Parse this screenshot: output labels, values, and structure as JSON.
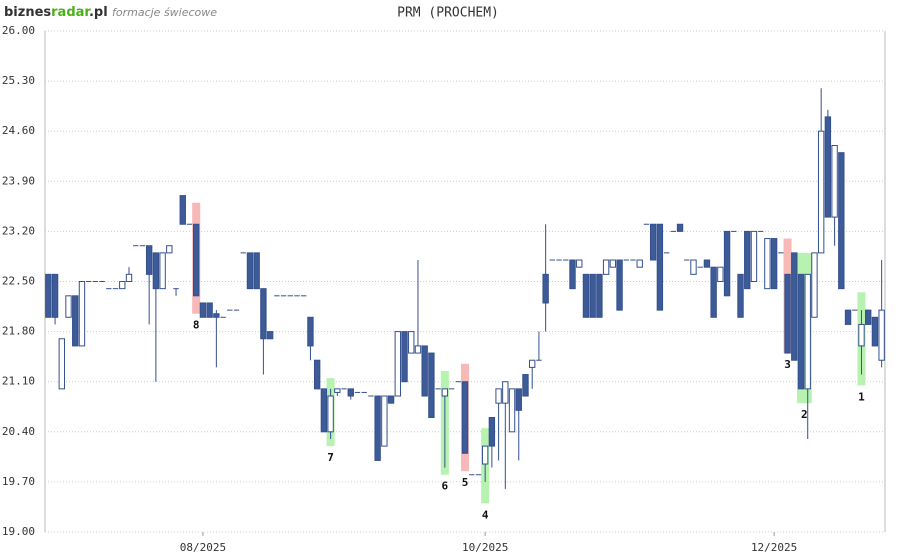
{
  "logo": [
    "biznes",
    "radar",
    ".pl"
  ],
  "subtitle": "formacje świecowe",
  "chart_data": {
    "type": "candlestick",
    "title": "PRM (PROCHEM)",
    "up_color": "#ffffff",
    "down_color": "#3d5b97",
    "edge_color": "#34508f",
    "grid": true,
    "ylim": [
      19,
      26
    ],
    "yticks": [
      {
        "value": 19,
        "label": "19.00"
      },
      {
        "value": 19.7,
        "label": "19.70"
      },
      {
        "value": 20.4,
        "label": "20.40"
      },
      {
        "value": 21.1,
        "label": "21.10"
      },
      {
        "value": 21.8,
        "label": "21.80"
      },
      {
        "value": 22.5,
        "label": "22.50"
      },
      {
        "value": 23.2,
        "label": "23.20"
      },
      {
        "value": 23.9,
        "label": "23.90"
      },
      {
        "value": 24.6,
        "label": "24.60"
      },
      {
        "value": 25.3,
        "label": "25.30"
      },
      {
        "value": 26,
        "label": "26.00"
      }
    ],
    "categories": [
      null,
      null,
      null,
      null,
      null,
      null,
      null,
      null,
      null,
      null,
      null,
      null,
      null,
      null,
      null,
      null,
      null,
      null,
      null,
      null,
      null,
      null,
      null,
      "08/2025",
      null,
      null,
      null,
      null,
      null,
      null,
      null,
      null,
      null,
      null,
      null,
      null,
      null,
      null,
      null,
      null,
      null,
      null,
      null,
      null,
      null,
      null,
      null,
      null,
      null,
      null,
      null,
      null,
      null,
      null,
      null,
      null,
      null,
      null,
      null,
      null,
      null,
      null,
      null,
      null,
      null,
      "10/2025",
      null,
      null,
      null,
      null,
      null,
      null,
      null,
      null,
      null,
      null,
      null,
      null,
      null,
      null,
      null,
      null,
      null,
      null,
      null,
      null,
      null,
      null,
      null,
      null,
      null,
      null,
      null,
      null,
      null,
      null,
      null,
      null,
      null,
      null,
      null,
      null,
      null,
      null,
      null,
      null,
      null,
      null,
      "12/2025",
      null,
      null,
      null,
      null,
      null,
      null,
      null,
      null,
      null,
      null,
      null,
      null,
      null,
      null,
      null,
      null
    ],
    "ohlc": [
      [
        22.6,
        22.6,
        22.0,
        22.0
      ],
      [
        22.6,
        22.6,
        21.9,
        22.0
      ],
      [
        21.0,
        21.7,
        21.0,
        21.7
      ],
      [
        22.0,
        22.3,
        22.0,
        22.3
      ],
      [
        22.3,
        22.3,
        21.6,
        21.6
      ],
      [
        21.6,
        22.5,
        21.6,
        22.5
      ],
      [
        22.5,
        22.5,
        22.5,
        22.5
      ],
      [
        22.5,
        22.5,
        22.5,
        22.5
      ],
      [
        22.5,
        22.5,
        22.5,
        22.5
      ],
      [
        22.4,
        22.4,
        22.4,
        22.4
      ],
      [
        22.4,
        22.4,
        22.4,
        22.4
      ],
      [
        22.4,
        22.5,
        22.4,
        22.5
      ],
      [
        22.5,
        22.7,
        22.5,
        22.6
      ],
      [
        23.0,
        23.0,
        23.0,
        23.0
      ],
      [
        23.0,
        23.0,
        23.0,
        23.0
      ],
      [
        23.0,
        23.0,
        21.9,
        22.6
      ],
      [
        22.9,
        22.9,
        21.1,
        22.4
      ],
      [
        22.4,
        22.9,
        22.4,
        22.9
      ],
      [
        22.9,
        23.0,
        22.9,
        23.0
      ],
      [
        22.4,
        22.4,
        22.3,
        22.4
      ],
      [
        23.7,
        23.7,
        23.3,
        23.3
      ],
      [
        23.3,
        23.3,
        23.3,
        23.3
      ],
      [
        23.3,
        23.3,
        22.3,
        22.3
      ],
      [
        22.2,
        22.2,
        22.0,
        22.0
      ],
      [
        22.2,
        22.2,
        22.0,
        22.0
      ],
      [
        22.05,
        22.1,
        21.3,
        22.0
      ],
      [
        22.0,
        22.0,
        22.0,
        22.0
      ],
      [
        22.1,
        22.1,
        22.1,
        22.1
      ],
      [
        22.1,
        22.1,
        22.1,
        22.1
      ],
      [
        22.9,
        22.9,
        22.9,
        22.9
      ],
      [
        22.9,
        22.9,
        22.4,
        22.4
      ],
      [
        22.9,
        22.9,
        22.4,
        22.4
      ],
      [
        22.4,
        22.4,
        21.2,
        21.7
      ],
      [
        21.8,
        21.8,
        21.7,
        21.7
      ],
      [
        22.3,
        22.3,
        22.3,
        22.3
      ],
      [
        22.3,
        22.3,
        22.3,
        22.3
      ],
      [
        22.3,
        22.3,
        22.3,
        22.3
      ],
      [
        22.3,
        22.3,
        22.3,
        22.3
      ],
      [
        22.3,
        22.3,
        22.3,
        22.3
      ],
      [
        22.0,
        22.0,
        21.4,
        21.6
      ],
      [
        21.4,
        21.4,
        21.0,
        21.0
      ],
      [
        21.0,
        21.0,
        20.4,
        20.4
      ],
      [
        20.4,
        21.0,
        20.3,
        20.9
      ],
      [
        20.95,
        21.0,
        20.9,
        21.0
      ],
      [
        21.0,
        21.0,
        21.0,
        21.0
      ],
      [
        21.0,
        21.0,
        20.85,
        20.9
      ],
      [
        20.95,
        20.95,
        20.95,
        20.95
      ],
      [
        20.95,
        20.95,
        20.95,
        20.95
      ],
      [
        20.9,
        20.9,
        20.9,
        20.9
      ],
      [
        20.9,
        20.9,
        20.0,
        20.0
      ],
      [
        20.2,
        20.9,
        20.2,
        20.9
      ],
      [
        20.9,
        20.9,
        20.8,
        20.8
      ],
      [
        20.9,
        21.8,
        20.9,
        21.8
      ],
      [
        21.8,
        21.8,
        21.1,
        21.1
      ],
      [
        21.5,
        21.8,
        21.5,
        21.8
      ],
      [
        21.5,
        22.8,
        21.5,
        21.6
      ],
      [
        21.6,
        21.6,
        20.9,
        20.9
      ],
      [
        21.5,
        21.5,
        20.6,
        20.6
      ],
      [
        21.0,
        21.0,
        21.0,
        21.0
      ],
      [
        20.9,
        21.0,
        19.9,
        21.0
      ],
      [
        21.0,
        21.0,
        21.0,
        21.0
      ],
      [
        21.1,
        21.1,
        21.1,
        21.1
      ],
      [
        21.1,
        21.1,
        20.1,
        20.1
      ],
      [
        19.8,
        19.8,
        19.8,
        19.8
      ],
      [
        19.8,
        19.8,
        19.8,
        19.8
      ],
      [
        19.95,
        20.2,
        19.7,
        20.2
      ],
      [
        20.6,
        20.6,
        19.9,
        20.2
      ],
      [
        20.8,
        21.0,
        20.0,
        21.0
      ],
      [
        20.8,
        21.1,
        19.6,
        21.1
      ],
      [
        20.4,
        21.0,
        20.4,
        21.0
      ],
      [
        21.0,
        21.0,
        20.0,
        20.7
      ],
      [
        21.2,
        21.2,
        20.9,
        20.9
      ],
      [
        21.3,
        21.4,
        21.0,
        21.4
      ],
      [
        21.4,
        21.8,
        21.4,
        21.4
      ],
      [
        22.6,
        23.3,
        21.8,
        22.2
      ],
      [
        22.8,
        22.8,
        22.8,
        22.8
      ],
      [
        22.8,
        22.8,
        22.8,
        22.8
      ],
      [
        22.8,
        22.8,
        22.8,
        22.8
      ],
      [
        22.8,
        22.8,
        22.4,
        22.4
      ],
      [
        22.7,
        22.8,
        22.7,
        22.8
      ],
      [
        22.6,
        22.6,
        22.0,
        22.0
      ],
      [
        22.6,
        22.6,
        22.0,
        22.0
      ],
      [
        22.6,
        22.6,
        22.0,
        22.0
      ],
      [
        22.6,
        22.8,
        22.6,
        22.8
      ],
      [
        22.7,
        22.8,
        22.7,
        22.8
      ],
      [
        22.8,
        22.8,
        22.1,
        22.1
      ],
      [
        22.8,
        22.8,
        22.8,
        22.8
      ],
      [
        22.8,
        22.8,
        22.8,
        22.8
      ],
      [
        22.7,
        22.8,
        22.7,
        22.8
      ],
      [
        23.3,
        23.3,
        23.3,
        23.3
      ],
      [
        23.3,
        23.3,
        22.8,
        22.8
      ],
      [
        23.3,
        23.3,
        22.1,
        22.1
      ],
      [
        22.9,
        22.9,
        22.9,
        22.9
      ],
      [
        23.2,
        23.2,
        23.2,
        23.2
      ],
      [
        23.3,
        23.3,
        23.2,
        23.2
      ],
      [
        22.8,
        22.8,
        22.8,
        22.8
      ],
      [
        22.6,
        22.8,
        22.6,
        22.8
      ],
      [
        22.7,
        22.7,
        22.7,
        22.7
      ],
      [
        22.8,
        22.8,
        22.7,
        22.7
      ],
      [
        22.7,
        22.7,
        22.0,
        22.0
      ],
      [
        22.5,
        22.7,
        22.5,
        22.7
      ],
      [
        23.2,
        23.2,
        22.3,
        22.3
      ],
      [
        23.2,
        23.2,
        23.2,
        23.2
      ],
      [
        22.6,
        22.6,
        22.0,
        22.0
      ],
      [
        23.2,
        23.2,
        22.4,
        22.4
      ],
      [
        22.5,
        23.2,
        22.5,
        23.2
      ],
      [
        23.2,
        23.2,
        23.2,
        23.2
      ],
      [
        22.4,
        23.1,
        22.4,
        23.1
      ],
      [
        23.1,
        23.1,
        22.4,
        22.4
      ],
      [
        22.9,
        22.9,
        22.9,
        22.9
      ],
      [
        22.6,
        22.6,
        21.5,
        21.5
      ],
      [
        22.9,
        22.9,
        21.4,
        21.4
      ],
      [
        22.6,
        22.6,
        21.0,
        21.0
      ],
      [
        21.0,
        22.6,
        20.3,
        22.6
      ],
      [
        22.0,
        22.9,
        22.0,
        22.9
      ],
      [
        22.9,
        25.2,
        22.9,
        24.6
      ],
      [
        24.8,
        24.9,
        23.4,
        23.4
      ],
      [
        23.4,
        24.4,
        23.0,
        24.4
      ],
      [
        24.3,
        24.3,
        22.4,
        22.4
      ],
      [
        22.1,
        22.1,
        21.9,
        21.9
      ],
      [
        22.1,
        22.1,
        22.1,
        22.1
      ],
      [
        21.6,
        22.1,
        21.2,
        21.9
      ],
      [
        22.1,
        22.1,
        21.9,
        21.9
      ],
      [
        22.0,
        22.0,
        21.6,
        21.6
      ],
      [
        21.4,
        22.8,
        21.3,
        22.1
      ]
    ],
    "patterns": [
      {
        "label": "8",
        "color": "#f7b8b8",
        "start": 22,
        "end": 22,
        "top": 23.6,
        "bottom": 22.05
      },
      {
        "label": "7",
        "color": "#b8f2b0",
        "start": 42,
        "end": 42,
        "top": 21.15,
        "bottom": 20.2
      },
      {
        "label": "6",
        "color": "#b8f2b0",
        "start": 59,
        "end": 59,
        "top": 21.25,
        "bottom": 19.8
      },
      {
        "label": "5",
        "color": "#f7b8b8",
        "start": 62,
        "end": 62,
        "top": 21.35,
        "bottom": 19.85
      },
      {
        "label": "4",
        "color": "#b8f2b0",
        "start": 65,
        "end": 65,
        "top": 20.45,
        "bottom": 19.4
      },
      {
        "label": "3",
        "color": "#f7b8b8",
        "start": 110,
        "end": 110,
        "top": 23.1,
        "bottom": 21.5
      },
      {
        "label": "2",
        "color": "#b8f2b0",
        "start": 112,
        "end": 113,
        "top": 22.9,
        "bottom": 20.8
      },
      {
        "label": "1",
        "color": "#b8f2b0",
        "start": 121,
        "end": 121,
        "top": 22.35,
        "bottom": 21.05
      }
    ]
  }
}
